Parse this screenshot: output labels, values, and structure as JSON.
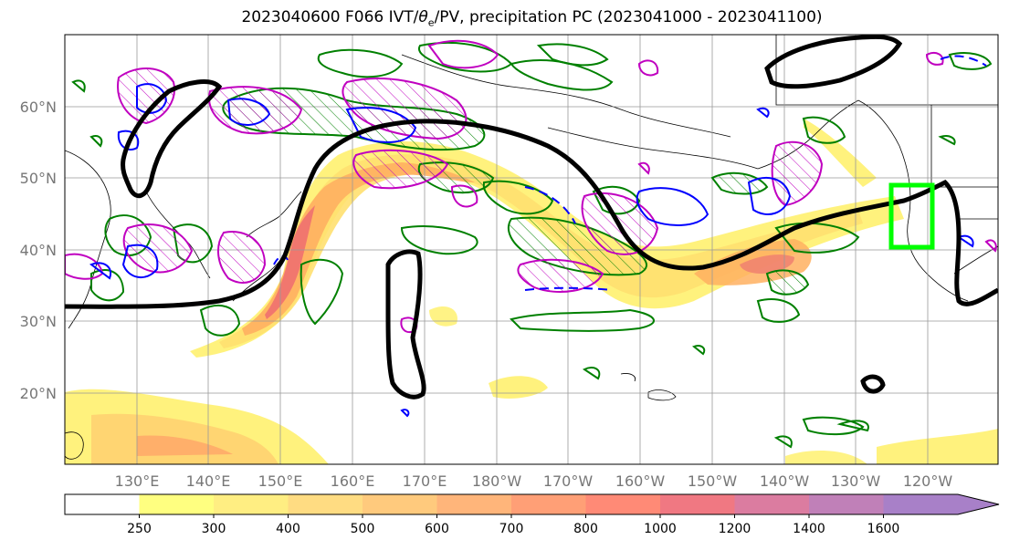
{
  "title": {
    "prefix": "2023040600 F066 IVT/",
    "theta": "θ",
    "theta_sub": "e",
    "suffix": "/PV, precipitation PC (2023041000 - 2023041100)"
  },
  "lat_labels": [
    "60°N",
    "50°N",
    "40°N",
    "30°N",
    "20°N"
  ],
  "lon_labels": [
    "130°E",
    "140°E",
    "150°E",
    "160°E",
    "170°E",
    "180°W",
    "170°W",
    "160°W",
    "150°W",
    "140°W",
    "130°W",
    "120°W"
  ],
  "colorbar": {
    "tick_labels": [
      "250",
      "300",
      "400",
      "500",
      "600",
      "700",
      "800",
      "1000",
      "1200",
      "1400",
      "1600"
    ],
    "colors": [
      "#ffffff",
      "#ffff80",
      "#ffee82",
      "#ffdc82",
      "#ffca7d",
      "#ffb57a",
      "#ff9f76",
      "#ff8a76",
      "#f07882",
      "#db7ca0",
      "#c080b8",
      "#a880c8"
    ]
  },
  "colors": {
    "ivt_fill_low": "#fff066",
    "ivt_fill_mid": "#ffb060",
    "ivt_fill_high": "#f07070",
    "theta_e_contour": "#000000",
    "pv_contour_positive": "#0000ff",
    "pv_contour_magenta": "#c000c0",
    "precip_contour": "#008000",
    "target_box": "#00ff00"
  }
}
